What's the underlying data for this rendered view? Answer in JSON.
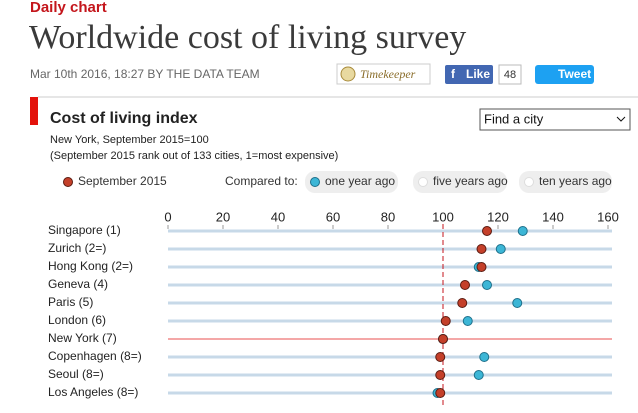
{
  "header": {
    "kicker": "Daily chart",
    "title": "Worldwide cost of living survey",
    "byline": "Mar 10th 2016, 18:27 BY THE DATA TEAM",
    "timekeeper": "Timekeeper",
    "like": "Like",
    "like_count": "48",
    "tweet": "Tweet"
  },
  "chart_data": {
    "type": "dot",
    "title": "Cost of living index",
    "subtitle": "New York, September 2015=100",
    "note": "(September 2015 rank out of 133 cities, 1=most expensive)",
    "compare_label": "Compared to:",
    "compare_options": [
      "one year ago",
      "five years ago",
      "ten years ago"
    ],
    "search": "Find a city",
    "categories": [
      "Singapore (1)",
      "Zurich (2=)",
      "Hong Kong (2=)",
      "Geneva (4)",
      "Paris (5)",
      "London (6)",
      "New York (7)",
      "Copenhagen (8=)",
      "Seoul (8=)",
      "Los Angeles (8=)"
    ],
    "series": [
      {
        "name": "one year ago",
        "color": "#3cb6d6",
        "values": [
          129,
          121,
          113,
          116,
          127,
          109,
          100,
          115,
          113,
          98
        ]
      },
      {
        "name": "September 2015",
        "color": "#c4402a",
        "values": [
          116,
          114,
          114,
          108,
          107,
          101,
          100,
          99,
          99,
          99
        ]
      }
    ],
    "legend_series": 1,
    "highlight": "New York (7)",
    "reference_line": 100,
    "xlim": [
      0,
      160
    ],
    "xticks": [
      0,
      20,
      40,
      60,
      80,
      100,
      120,
      140,
      160
    ]
  }
}
